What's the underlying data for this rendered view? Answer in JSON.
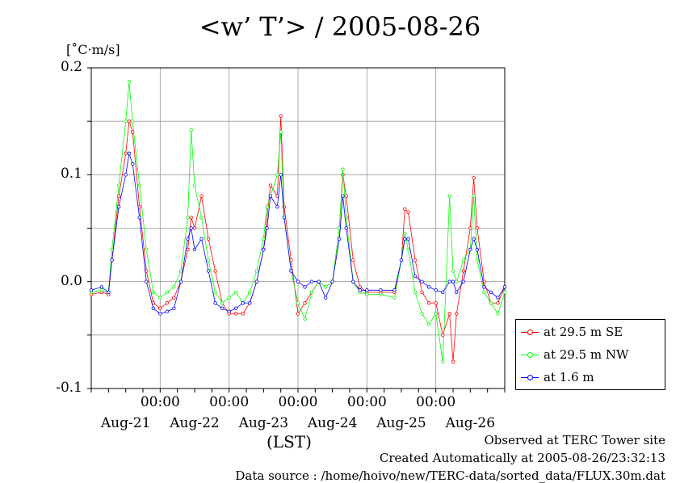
{
  "title": "<w’ T’> / 2005-08-26",
  "unit": "[˚C·m/s]",
  "lst_label": "(LST)",
  "footer": {
    "line1": "Observed at TERC Tower site",
    "line2": "Created Automatically at 2005-08-26/23:32:13",
    "line3": "Data source : /home/hoivo/new/TERC-data/sorted_data/FLUX.30m.dat"
  },
  "chart_data": {
    "type": "line",
    "title": "<w’ T’> / 2005-08-26",
    "ylabel": "[˚C·m/s]",
    "xlabel": "(LST)",
    "ylim": [
      -0.1,
      0.2
    ],
    "yticks": [
      "0.2",
      "0.1",
      "0.0",
      "-0.1"
    ],
    "xlim": [
      0,
      6
    ],
    "x_unit": "days since Aug-20 00:00",
    "time_labels": [
      "00:00",
      "00:00",
      "00:00",
      "00:00",
      "00:00"
    ],
    "date_labels": [
      "Aug-21",
      "Aug-22",
      "Aug-23",
      "Aug-24",
      "Aug-25",
      "Aug-26"
    ],
    "grid": true,
    "legend_position": "bottom-right outside",
    "series": [
      {
        "name": "at 29.5 m SE",
        "color": "#ff0000",
        "points": [
          [
            0,
            -0.012
          ],
          [
            0.15,
            -0.01
          ],
          [
            0.25,
            -0.012
          ],
          [
            0.3,
            0.02
          ],
          [
            0.4,
            0.08
          ],
          [
            0.5,
            0.12
          ],
          [
            0.55,
            0.15
          ],
          [
            0.6,
            0.14
          ],
          [
            0.7,
            0.07
          ],
          [
            0.8,
            0.01
          ],
          [
            0.9,
            -0.02
          ],
          [
            1.0,
            -0.025
          ],
          [
            1.1,
            -0.02
          ],
          [
            1.2,
            -0.015
          ],
          [
            1.3,
            0.0
          ],
          [
            1.4,
            0.03
          ],
          [
            1.45,
            0.06
          ],
          [
            1.5,
            0.05
          ],
          [
            1.6,
            0.08
          ],
          [
            1.7,
            0.04
          ],
          [
            1.8,
            0.01
          ],
          [
            1.9,
            -0.02
          ],
          [
            2.0,
            -0.03
          ],
          [
            2.1,
            -0.03
          ],
          [
            2.2,
            -0.03
          ],
          [
            2.3,
            -0.02
          ],
          [
            2.4,
            0.0
          ],
          [
            2.5,
            0.03
          ],
          [
            2.55,
            0.06
          ],
          [
            2.6,
            0.09
          ],
          [
            2.7,
            0.08
          ],
          [
            2.75,
            0.155
          ],
          [
            2.8,
            0.07
          ],
          [
            2.9,
            0.02
          ],
          [
            3.0,
            -0.03
          ],
          [
            3.1,
            -0.02
          ],
          [
            3.2,
            -0.01
          ],
          [
            3.3,
            0.0
          ],
          [
            3.4,
            -0.005
          ],
          [
            3.5,
            0.0
          ],
          [
            3.6,
            0.05
          ],
          [
            3.65,
            0.1
          ],
          [
            3.7,
            0.08
          ],
          [
            3.8,
            0.02
          ],
          [
            3.9,
            -0.005
          ],
          [
            4.0,
            -0.01
          ],
          [
            4.2,
            -0.01
          ],
          [
            4.4,
            -0.01
          ],
          [
            4.5,
            0.02
          ],
          [
            4.55,
            0.068
          ],
          [
            4.6,
            0.065
          ],
          [
            4.7,
            0.02
          ],
          [
            4.8,
            -0.01
          ],
          [
            4.9,
            -0.02
          ],
          [
            5.0,
            -0.02
          ],
          [
            5.1,
            -0.05
          ],
          [
            5.2,
            -0.03
          ],
          [
            5.25,
            -0.075
          ],
          [
            5.3,
            -0.03
          ],
          [
            5.4,
            0.01
          ],
          [
            5.5,
            0.05
          ],
          [
            5.55,
            0.097
          ],
          [
            5.6,
            0.05
          ],
          [
            5.7,
            0.0
          ],
          [
            5.8,
            -0.02
          ],
          [
            5.9,
            -0.02
          ],
          [
            6.0,
            -0.005
          ]
        ]
      },
      {
        "name": "at 29.5 m NW",
        "color": "#00ff00",
        "points": [
          [
            0,
            -0.01
          ],
          [
            0.15,
            -0.008
          ],
          [
            0.25,
            -0.01
          ],
          [
            0.3,
            0.03
          ],
          [
            0.4,
            0.09
          ],
          [
            0.5,
            0.15
          ],
          [
            0.55,
            0.187
          ],
          [
            0.6,
            0.15
          ],
          [
            0.7,
            0.09
          ],
          [
            0.8,
            0.03
          ],
          [
            0.9,
            -0.01
          ],
          [
            1.0,
            -0.015
          ],
          [
            1.1,
            -0.01
          ],
          [
            1.2,
            -0.005
          ],
          [
            1.3,
            0.01
          ],
          [
            1.4,
            0.06
          ],
          [
            1.45,
            0.142
          ],
          [
            1.5,
            0.09
          ],
          [
            1.6,
            0.06
          ],
          [
            1.7,
            0.02
          ],
          [
            1.8,
            -0.01
          ],
          [
            1.9,
            -0.02
          ],
          [
            2.0,
            -0.015
          ],
          [
            2.1,
            -0.01
          ],
          [
            2.2,
            -0.02
          ],
          [
            2.3,
            -0.01
          ],
          [
            2.4,
            0.01
          ],
          [
            2.5,
            0.04
          ],
          [
            2.55,
            0.07
          ],
          [
            2.6,
            0.08
          ],
          [
            2.7,
            0.1
          ],
          [
            2.75,
            0.14
          ],
          [
            2.8,
            0.06
          ],
          [
            2.9,
            0.01
          ],
          [
            3.0,
            -0.02
          ],
          [
            3.1,
            -0.035
          ],
          [
            3.2,
            -0.01
          ],
          [
            3.3,
            0.0
          ],
          [
            3.4,
            -0.005
          ],
          [
            3.5,
            0.0
          ],
          [
            3.6,
            0.05
          ],
          [
            3.65,
            0.105
          ],
          [
            3.7,
            0.06
          ],
          [
            3.8,
            0.0
          ],
          [
            3.9,
            -0.01
          ],
          [
            4.0,
            -0.012
          ],
          [
            4.2,
            -0.012
          ],
          [
            4.4,
            -0.015
          ],
          [
            4.5,
            0.02
          ],
          [
            4.55,
            0.045
          ],
          [
            4.6,
            0.03
          ],
          [
            4.7,
            -0.01
          ],
          [
            4.8,
            -0.03
          ],
          [
            4.9,
            -0.04
          ],
          [
            5.0,
            -0.03
          ],
          [
            5.1,
            -0.075
          ],
          [
            5.2,
            0.08
          ],
          [
            5.25,
            0.01
          ],
          [
            5.3,
            0.0
          ],
          [
            5.4,
            0.02
          ],
          [
            5.5,
            0.03
          ],
          [
            5.55,
            0.08
          ],
          [
            5.6,
            0.02
          ],
          [
            5.7,
            -0.01
          ],
          [
            5.8,
            -0.02
          ],
          [
            5.9,
            -0.03
          ],
          [
            6.0,
            -0.01
          ]
        ]
      },
      {
        "name": "at 1.6 m",
        "color": "#0000ff",
        "points": [
          [
            0,
            -0.008
          ],
          [
            0.15,
            -0.005
          ],
          [
            0.25,
            -0.01
          ],
          [
            0.3,
            0.02
          ],
          [
            0.4,
            0.07
          ],
          [
            0.5,
            0.1
          ],
          [
            0.55,
            0.12
          ],
          [
            0.6,
            0.11
          ],
          [
            0.7,
            0.06
          ],
          [
            0.8,
            0.0
          ],
          [
            0.9,
            -0.025
          ],
          [
            1.0,
            -0.03
          ],
          [
            1.1,
            -0.028
          ],
          [
            1.2,
            -0.025
          ],
          [
            1.3,
            0.0
          ],
          [
            1.4,
            0.04
          ],
          [
            1.45,
            0.05
          ],
          [
            1.5,
            0.03
          ],
          [
            1.6,
            0.04
          ],
          [
            1.7,
            0.01
          ],
          [
            1.8,
            -0.02
          ],
          [
            1.9,
            -0.025
          ],
          [
            2.0,
            -0.028
          ],
          [
            2.1,
            -0.025
          ],
          [
            2.2,
            -0.02
          ],
          [
            2.3,
            -0.02
          ],
          [
            2.4,
            0.0
          ],
          [
            2.5,
            0.03
          ],
          [
            2.55,
            0.05
          ],
          [
            2.6,
            0.08
          ],
          [
            2.7,
            0.07
          ],
          [
            2.75,
            0.1
          ],
          [
            2.8,
            0.06
          ],
          [
            2.9,
            0.01
          ],
          [
            3.0,
            0.0
          ],
          [
            3.1,
            -0.005
          ],
          [
            3.2,
            0.0
          ],
          [
            3.3,
            0.0
          ],
          [
            3.4,
            -0.015
          ],
          [
            3.5,
            0.0
          ],
          [
            3.6,
            0.04
          ],
          [
            3.65,
            0.08
          ],
          [
            3.7,
            0.05
          ],
          [
            3.8,
            0.0
          ],
          [
            3.9,
            -0.008
          ],
          [
            4.0,
            -0.008
          ],
          [
            4.2,
            -0.008
          ],
          [
            4.4,
            -0.008
          ],
          [
            4.5,
            0.02
          ],
          [
            4.55,
            0.04
          ],
          [
            4.6,
            0.04
          ],
          [
            4.7,
            0.005
          ],
          [
            4.8,
            0.0
          ],
          [
            4.9,
            -0.005
          ],
          [
            5.0,
            -0.008
          ],
          [
            5.1,
            -0.01
          ],
          [
            5.2,
            0.0
          ],
          [
            5.25,
            0.0
          ],
          [
            5.3,
            -0.01
          ],
          [
            5.4,
            0.0
          ],
          [
            5.5,
            0.03
          ],
          [
            5.55,
            0.04
          ],
          [
            5.6,
            0.03
          ],
          [
            5.7,
            -0.005
          ],
          [
            5.8,
            -0.01
          ],
          [
            5.9,
            -0.015
          ],
          [
            6.0,
            -0.005
          ]
        ]
      }
    ]
  }
}
